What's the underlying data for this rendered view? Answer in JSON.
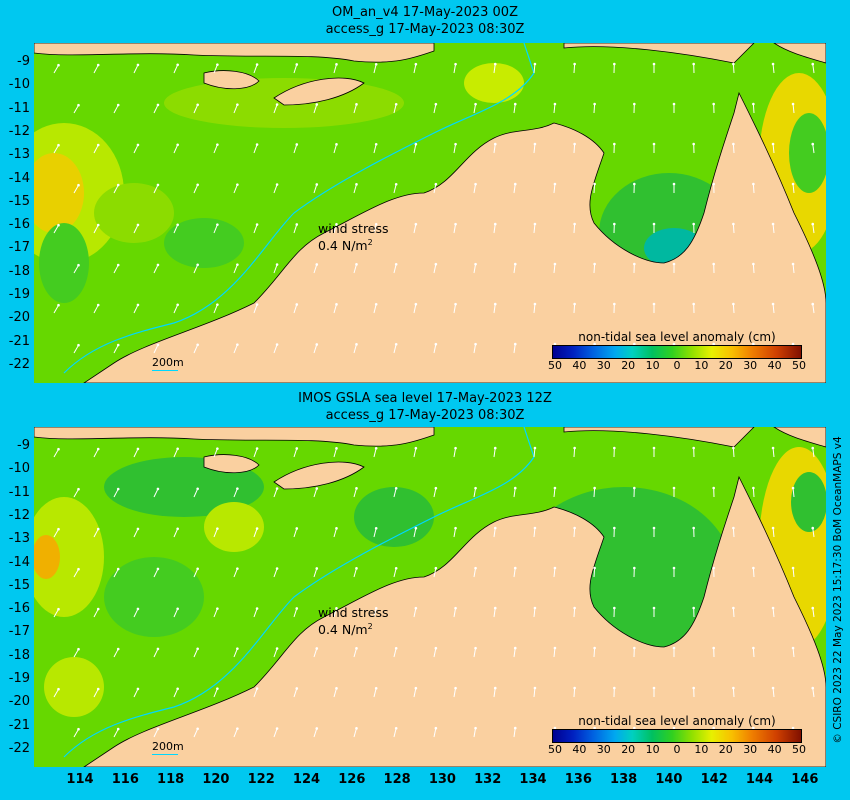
{
  "panels": [
    {
      "title_line1": "OM_an_v4  17-May-2023 00Z",
      "title_line2": "access_g 17-May-2023 08:30Z",
      "wind_label": "wind stress",
      "wind_value": "0.4 N/m",
      "wind_exp": "2",
      "depth_label": "200m",
      "legend_title": "non-tidal sea level anomaly (cm)"
    },
    {
      "title_line1": "IMOS GSLA sea level  17-May-2023 12Z",
      "title_line2": "access_g 17-May-2023 08:30Z",
      "wind_label": "wind stress",
      "wind_value": "0.4 N/m",
      "wind_exp": "2",
      "depth_label": "200m",
      "legend_title": "non-tidal sea level anomaly (cm)"
    }
  ],
  "legend_ticks": [
    "50",
    "40",
    "30",
    "20",
    "10",
    "0",
    "10",
    "20",
    "30",
    "40",
    "50"
  ],
  "lat_labels": [
    "-9",
    "-10",
    "-11",
    "-12",
    "-13",
    "-14",
    "-15",
    "-16",
    "-17",
    "-18",
    "-19",
    "-20",
    "-21",
    "-22"
  ],
  "lon_labels": [
    "114",
    "116",
    "118",
    "120",
    "122",
    "124",
    "126",
    "128",
    "130",
    "132",
    "134",
    "136",
    "138",
    "140",
    "142",
    "144",
    "146"
  ],
  "credit": "© CSIRO 2023  22 May 2023 15:17:30 BoM OceanMAPS v4",
  "colors": {
    "ocean_background": "#00c8f0",
    "land": "#fad0a0",
    "sea_green": "#66d800",
    "contour_200m": "#00d8ff"
  }
}
